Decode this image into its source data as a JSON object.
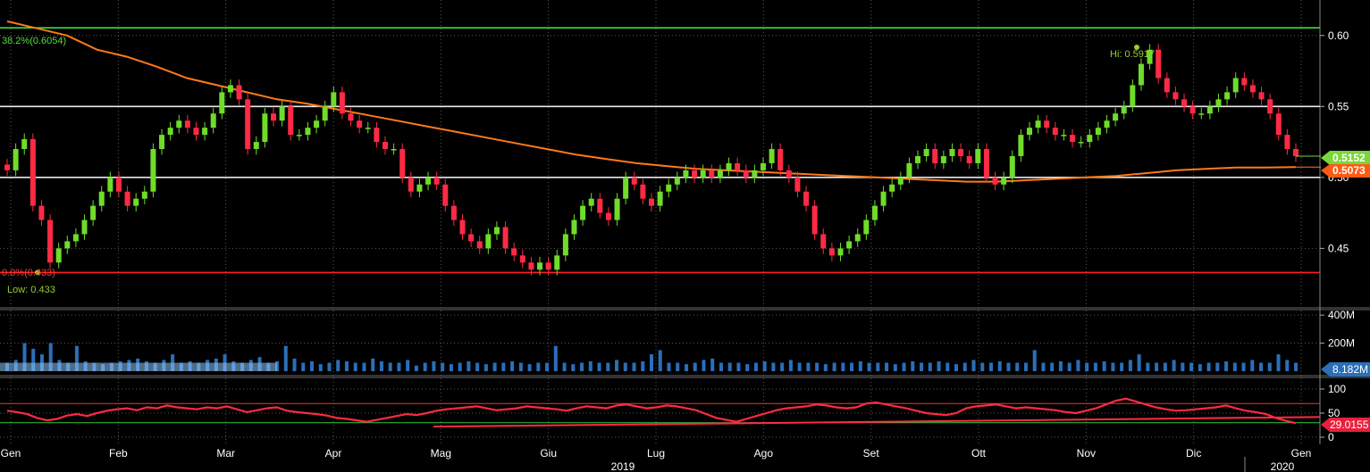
{
  "chart_data": {
    "type": "candlestick",
    "x_months": [
      "Gen",
      "Feb",
      "Mar",
      "Apr",
      "Mag",
      "Giu",
      "Lug",
      "Ago",
      "Set",
      "Ott",
      "Nov",
      "Dic",
      "Gen"
    ],
    "x_years": [
      "2019",
      "2020"
    ],
    "price_panel": {
      "ylim": [
        0.41,
        0.625
      ],
      "y_ticks": [
        "0.60",
        "0.55",
        "0.50",
        "0.45"
      ],
      "last_price": "0.5152",
      "moving_average_last": "0.5073",
      "fib_levels": [
        {
          "label": "38.2%(0.6054)",
          "value": 0.6054
        },
        {
          "label": "0.0%(0.433)",
          "value": 0.433
        }
      ],
      "horizontal_lines": [
        0.55,
        0.5
      ],
      "high_label": "Hi: 0.5917",
      "low_label": "Low: 0.433",
      "close_series": [
        0.505,
        0.52,
        0.527,
        0.48,
        0.47,
        0.44,
        0.45,
        0.455,
        0.46,
        0.47,
        0.48,
        0.49,
        0.5,
        0.49,
        0.48,
        0.485,
        0.49,
        0.52,
        0.53,
        0.535,
        0.54,
        0.535,
        0.53,
        0.535,
        0.545,
        0.56,
        0.565,
        0.555,
        0.52,
        0.525,
        0.545,
        0.54,
        0.55,
        0.53,
        0.53,
        0.535,
        0.54,
        0.55,
        0.56,
        0.545,
        0.54,
        0.535,
        0.535,
        0.525,
        0.52,
        0.52,
        0.5,
        0.49,
        0.495,
        0.5,
        0.495,
        0.48,
        0.47,
        0.46,
        0.455,
        0.45,
        0.46,
        0.465,
        0.45,
        0.445,
        0.44,
        0.435,
        0.44,
        0.435,
        0.445,
        0.46,
        0.47,
        0.48,
        0.485,
        0.475,
        0.47,
        0.485,
        0.5,
        0.495,
        0.485,
        0.48,
        0.49,
        0.495,
        0.5,
        0.505,
        0.5,
        0.505,
        0.5,
        0.505,
        0.51,
        0.505,
        0.5,
        0.505,
        0.51,
        0.52,
        0.505,
        0.5,
        0.49,
        0.48,
        0.46,
        0.45,
        0.445,
        0.45,
        0.455,
        0.46,
        0.47,
        0.48,
        0.49,
        0.495,
        0.5,
        0.51,
        0.515,
        0.52,
        0.51,
        0.515,
        0.52,
        0.515,
        0.51,
        0.52,
        0.5,
        0.495,
        0.5,
        0.515,
        0.53,
        0.535,
        0.54,
        0.535,
        0.53,
        0.53,
        0.525,
        0.525,
        0.53,
        0.535,
        0.54,
        0.545,
        0.55,
        0.565,
        0.58,
        0.59,
        0.57,
        0.56,
        0.555,
        0.55,
        0.545,
        0.545,
        0.55,
        0.555,
        0.56,
        0.57,
        0.565,
        0.56,
        0.555,
        0.545,
        0.53,
        0.52,
        0.515
      ],
      "ma_series": [
        0.61,
        0.605,
        0.6,
        0.59,
        0.585,
        0.578,
        0.57,
        0.565,
        0.56,
        0.555,
        0.552,
        0.548,
        0.544,
        0.54,
        0.536,
        0.532,
        0.528,
        0.524,
        0.52,
        0.516,
        0.513,
        0.51,
        0.508,
        0.506,
        0.505,
        0.504,
        0.503,
        0.502,
        0.501,
        0.5,
        0.499,
        0.498,
        0.497,
        0.497,
        0.498,
        0.499,
        0.5,
        0.501,
        0.503,
        0.505,
        0.506,
        0.507,
        0.507,
        0.5073
      ]
    },
    "volume_panel": {
      "y_ticks": [
        "400M",
        "200M"
      ],
      "last_volume": "8.182M",
      "bars": [
        60,
        80,
        200,
        160,
        120,
        200,
        80,
        60,
        180,
        70,
        60,
        50,
        60,
        70,
        80,
        90,
        70,
        60,
        80,
        120,
        60,
        70,
        60,
        80,
        90,
        120,
        70,
        60,
        80,
        100,
        60,
        70,
        180,
        90,
        60,
        70,
        50,
        60,
        80,
        70,
        60,
        60,
        90,
        70,
        60,
        60,
        80,
        40,
        60,
        70,
        60,
        50,
        60,
        70,
        60,
        50,
        60,
        60,
        70,
        60,
        50,
        60,
        60,
        180,
        60,
        50,
        60,
        70,
        60,
        60,
        80,
        60,
        60,
        70,
        120,
        150,
        60,
        60,
        50,
        60,
        80,
        90,
        60,
        60,
        60,
        50,
        60,
        70,
        60,
        60,
        80,
        60,
        60,
        60,
        50,
        60,
        60,
        60,
        70,
        60,
        60,
        60,
        50,
        60,
        70,
        60,
        60,
        70,
        60,
        50,
        60,
        80,
        60,
        60,
        70,
        60,
        60,
        60,
        150,
        60,
        60,
        70,
        60,
        80,
        60,
        60,
        70,
        60,
        60,
        80,
        120,
        60,
        60,
        60,
        80,
        60,
        60,
        50,
        60,
        60,
        70,
        60,
        60,
        80,
        60,
        60,
        120,
        80,
        60
      ]
    },
    "rsi_panel": {
      "y_ticks": [
        "100",
        "50",
        "0"
      ],
      "last_value": "29.0155",
      "ylim": [
        0,
        100
      ],
      "overbought": 70,
      "oversold": 30,
      "rsi_series": [
        55,
        52,
        48,
        40,
        35,
        38,
        45,
        48,
        44,
        50,
        55,
        58,
        60,
        56,
        62,
        60,
        66,
        62,
        60,
        58,
        62,
        60,
        64,
        58,
        52,
        56,
        60,
        62,
        55,
        52,
        50,
        48,
        45,
        40,
        38,
        35,
        32,
        36,
        40,
        44,
        48,
        46,
        50,
        55,
        58,
        60,
        62,
        64,
        60,
        56,
        58,
        60,
        64,
        62,
        60,
        58,
        55,
        60,
        64,
        62,
        60,
        66,
        68,
        64,
        60,
        62,
        66,
        64,
        60,
        56,
        48,
        40,
        36,
        32,
        38,
        44,
        50,
        56,
        60,
        62,
        64,
        68,
        66,
        62,
        60,
        62,
        70,
        72,
        68,
        64,
        60,
        55,
        50,
        48,
        46,
        50,
        60,
        64,
        66,
        68,
        64,
        60,
        62,
        60,
        58,
        56,
        52,
        50,
        55,
        60,
        68,
        76,
        80,
        74,
        68,
        62,
        58,
        55,
        56,
        58,
        60,
        62,
        66,
        60,
        55,
        52,
        48,
        40,
        34,
        29
      ]
    }
  }
}
